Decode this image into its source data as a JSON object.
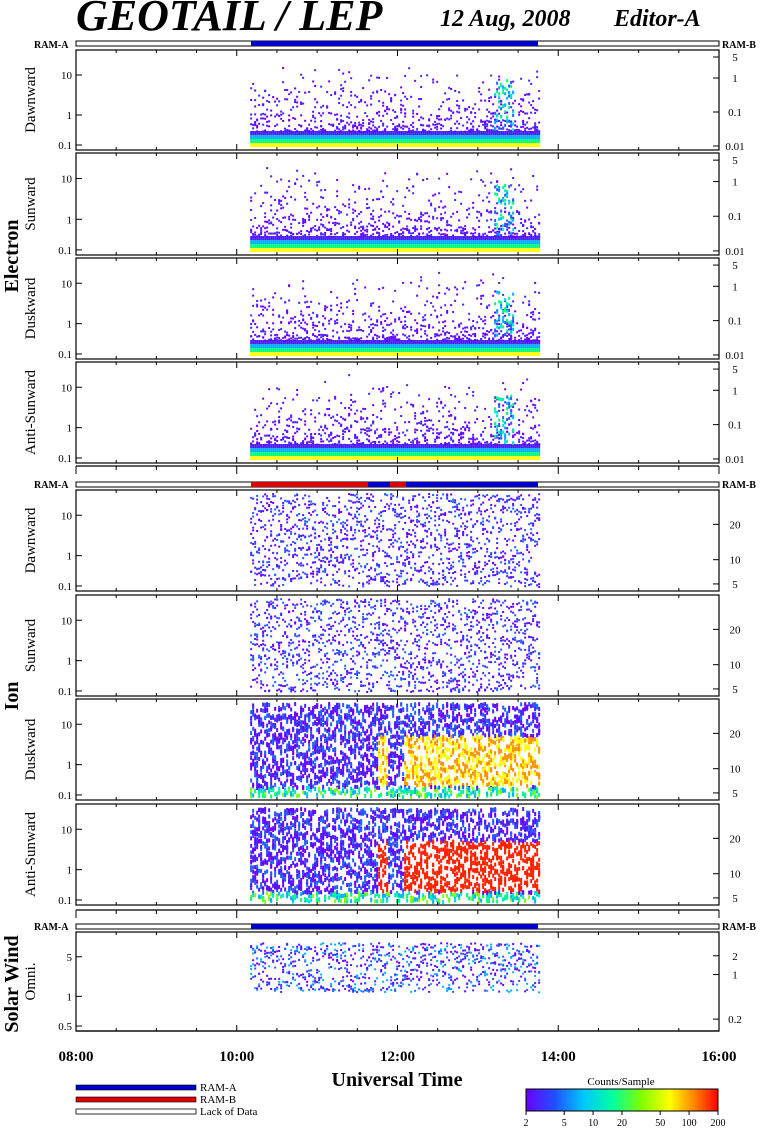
{
  "header": {
    "title": "GEOTAIL / LEP",
    "date": "12 Aug, 2008",
    "editor": "Editor-A"
  },
  "groups": [
    {
      "name": "Electron",
      "ram_left": "RAM-A",
      "ram_right": "RAM-B",
      "panels": [
        {
          "label": "Dawnward",
          "ylabels_left": [
            "10",
            "1",
            "0.1"
          ],
          "ylabels_right": [
            "5",
            "1",
            "0.1",
            "0.01"
          ]
        },
        {
          "label": "Sunward",
          "ylabels_left": [
            "10",
            "1",
            "0.1"
          ],
          "ylabels_right": [
            "5",
            "1",
            "0.1",
            "0.01"
          ]
        },
        {
          "label": "Duskward",
          "ylabels_left": [
            "10",
            "1",
            "0.1"
          ],
          "ylabels_right": [
            "5",
            "1",
            "0.1",
            "0.01"
          ]
        },
        {
          "label": "Anti-Sunward",
          "ylabels_left": [
            "10",
            "1",
            "0.1"
          ],
          "ylabels_right": [
            "5",
            "1",
            "0.1",
            "0.01"
          ]
        }
      ]
    },
    {
      "name": "Ion",
      "ram_left": "RAM-A",
      "ram_right": "RAM-B",
      "panels": [
        {
          "label": "Dawnward",
          "ylabels_left": [
            "10",
            "1",
            "0.1"
          ],
          "ylabels_right": [
            "20",
            "10",
            "5"
          ]
        },
        {
          "label": "Sunward",
          "ylabels_left": [
            "10",
            "1",
            "0.1"
          ],
          "ylabels_right": [
            "20",
            "10",
            "5"
          ]
        },
        {
          "label": "Duskward",
          "ylabels_left": [
            "10",
            "1",
            "0.1"
          ],
          "ylabels_right": [
            "20",
            "10",
            "5"
          ]
        },
        {
          "label": "Anti-Sunward",
          "ylabels_left": [
            "10",
            "1",
            "0.1"
          ],
          "ylabels_right": [
            "20",
            "10",
            "5"
          ]
        }
      ]
    },
    {
      "name": "Solar Wind",
      "ram_left": "RAM-A",
      "ram_right": "RAM-B",
      "panels": [
        {
          "label": "Omni.",
          "ylabels_left": [
            "5",
            "1",
            "0.5"
          ],
          "ylabels_right": [
            "2",
            "1",
            "0.2"
          ]
        }
      ]
    }
  ],
  "xaxis": {
    "title": "Universal Time",
    "ticks": [
      "08:00",
      "10:00",
      "12:00",
      "14:00",
      "16:00"
    ]
  },
  "legend": {
    "items": [
      {
        "label": "RAM-A",
        "color": "#0000cc"
      },
      {
        "label": "RAM-B",
        "color": "#dd0000"
      },
      {
        "label": "Lack of Data",
        "color": "#ffffff"
      }
    ]
  },
  "colorbar": {
    "title": "Counts/Sample",
    "ticks": [
      "2",
      "5",
      "10",
      "20",
      "50",
      "100",
      "200"
    ]
  },
  "chart_data": {
    "type": "heatmap",
    "title": "GEOTAIL / LEP",
    "xlabel": "Universal Time",
    "xlim": [
      "08:00",
      "16:00"
    ],
    "data_coverage": [
      "10:10",
      "13:45"
    ],
    "ram_mode_segments": {
      "electron": [
        {
          "from": "10:10",
          "to": "13:45",
          "mode": "RAM-A"
        }
      ],
      "ion": [
        {
          "from": "10:10",
          "to": "11:45",
          "mode": "RAM-B"
        },
        {
          "from": "11:45",
          "to": "11:52",
          "mode": "RAM-A"
        },
        {
          "from": "11:52",
          "to": "12:05",
          "mode": "RAM-B"
        },
        {
          "from": "12:05",
          "to": "13:45",
          "mode": "RAM-A"
        }
      ],
      "solar_wind": [
        {
          "from": "10:10",
          "to": "13:45",
          "mode": "RAM-A"
        }
      ]
    },
    "colorscale": {
      "label": "Counts/Sample",
      "min": 2,
      "max": 200,
      "log": true
    },
    "series": [
      {
        "name": "Electron Dawnward",
        "peak_time": "13:20",
        "level": "low"
      },
      {
        "name": "Electron Sunward",
        "peak_time": "13:20",
        "level": "low"
      },
      {
        "name": "Electron Duskward",
        "peak_time": "13:20",
        "level": "low-moderate"
      },
      {
        "name": "Electron Anti-Sunward",
        "peak_time": "13:20",
        "level": "low-moderate"
      },
      {
        "name": "Ion Dawnward",
        "level": "low"
      },
      {
        "name": "Ion Sunward",
        "level": "low"
      },
      {
        "name": "Ion Duskward",
        "enhanced_from": "11:45",
        "level": "high"
      },
      {
        "name": "Ion Anti-Sunward",
        "enhanced_from": "11:45",
        "level": "saturated"
      },
      {
        "name": "Solar Wind Omni.",
        "level": "low"
      }
    ]
  }
}
